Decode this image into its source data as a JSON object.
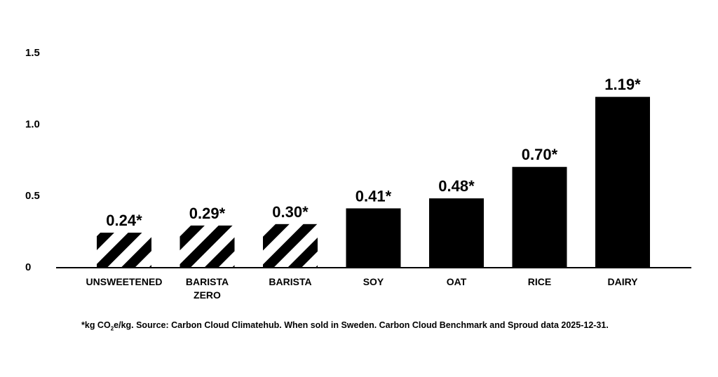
{
  "chart_data": {
    "type": "bar",
    "categories": [
      [
        "UNSWEETENED"
      ],
      [
        "BARISTA",
        "ZERO"
      ],
      [
        "BARISTA"
      ],
      [
        "SOY"
      ],
      [
        "OAT"
      ],
      [
        "RICE"
      ],
      [
        "DAIRY"
      ]
    ],
    "values": [
      0.24,
      0.29,
      0.3,
      0.41,
      0.48,
      0.7,
      1.19
    ],
    "data_labels": [
      "0.24*",
      "0.29*",
      "0.30*",
      "0.41*",
      "0.48*",
      "0.70*",
      "1.19*"
    ],
    "fill_style": [
      "striped",
      "striped",
      "striped",
      "solid",
      "solid",
      "solid",
      "solid"
    ],
    "y_ticks": [
      {
        "value": 0,
        "label": "0"
      },
      {
        "value": 0.5,
        "label": "0.5"
      },
      {
        "value": 1.0,
        "label": "1.0"
      },
      {
        "value": 1.5,
        "label": "1.5"
      }
    ],
    "ylim": [
      0,
      1.5
    ],
    "grid": false,
    "colors": {
      "bar": "#000000",
      "stripe_bg": "#ffffff",
      "text": "#000000"
    }
  },
  "footnote": {
    "before": "*kg CO",
    "sub": "2",
    "after": "e/kg. Source: Carbon Cloud Climatehub. When sold in Sweden. Carbon Cloud Benchmark and Sproud data 2025-12-31."
  }
}
